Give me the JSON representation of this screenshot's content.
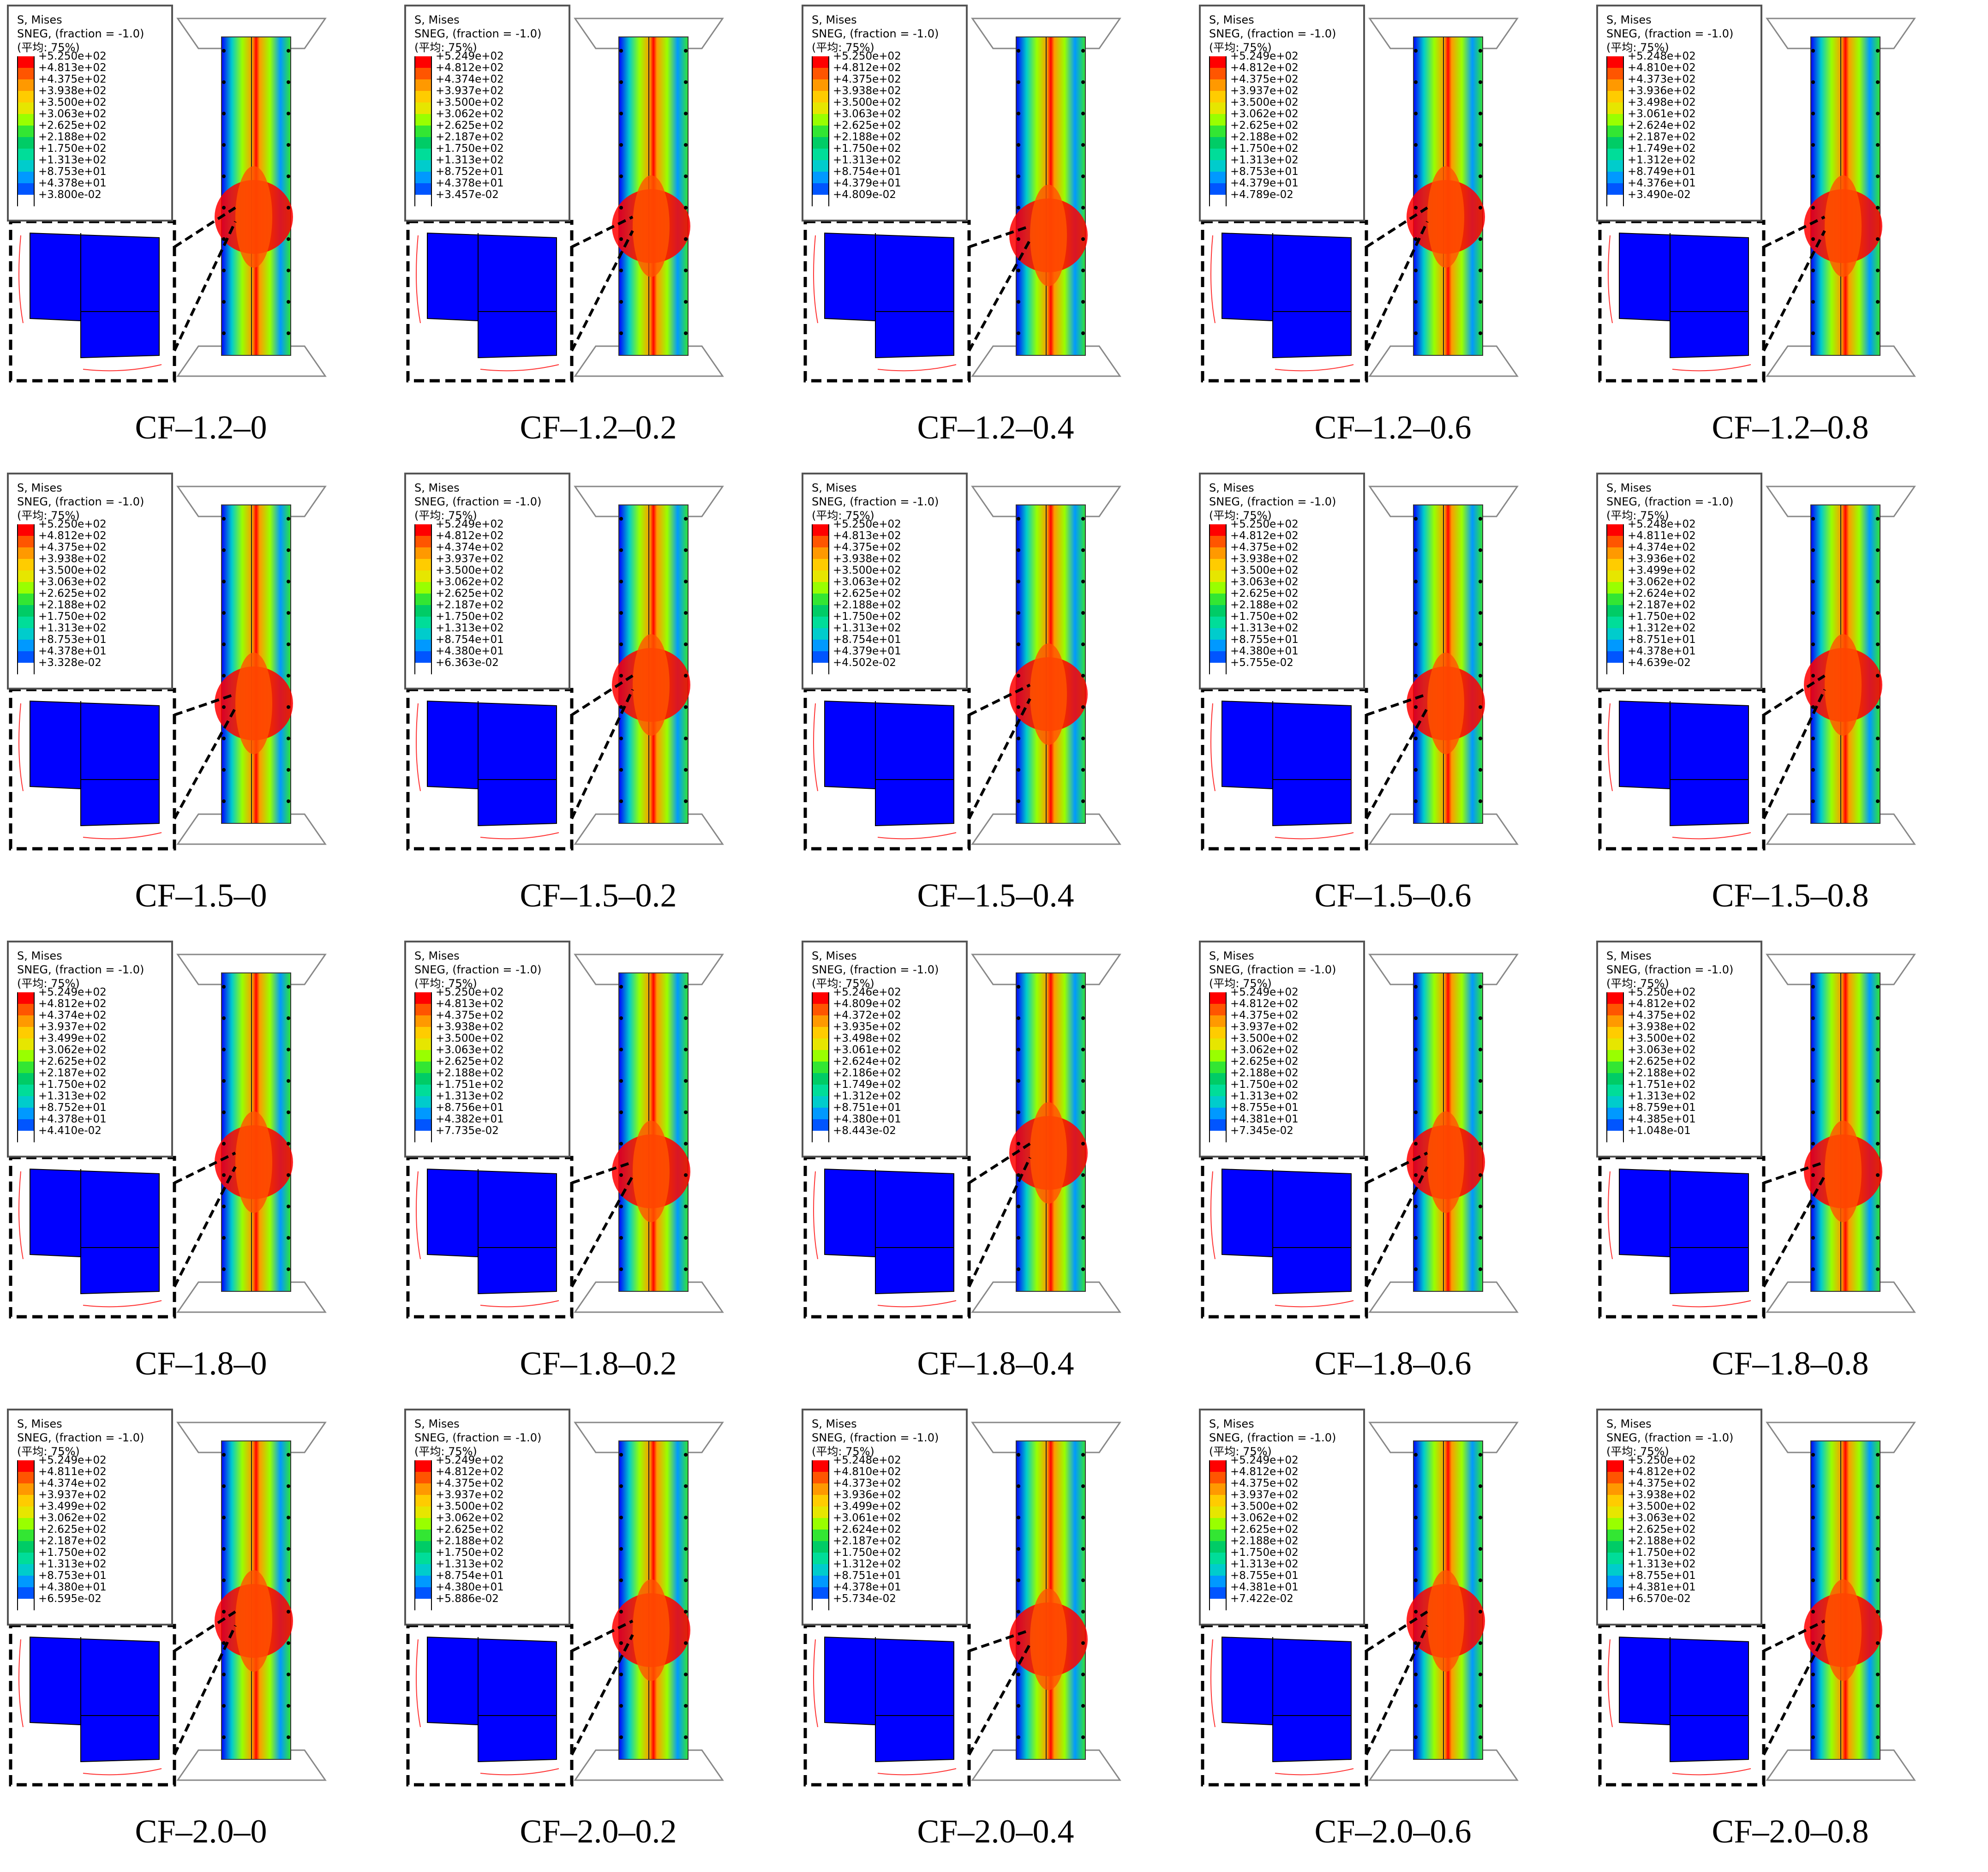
{
  "legend_header": {
    "line1": "S, Mises",
    "line2": "SNEG, (fraction = -1.0)",
    "line3": "(平均: 75%)"
  },
  "contour_colors": [
    "#ff0000",
    "#ff5500",
    "#ff9900",
    "#ffcc00",
    "#e6e600",
    "#99ff00",
    "#33e633",
    "#00cc66",
    "#00dd99",
    "#00cccc",
    "#0099ff",
    "#0055ff",
    "#0000ff"
  ],
  "panels": [
    {
      "label": "CF–1.2–0",
      "legend": [
        "+5.250e+02",
        "+4.813e+02",
        "+4.375e+02",
        "+3.938e+02",
        "+3.500e+02",
        "+3.063e+02",
        "+2.625e+02",
        "+2.188e+02",
        "+1.750e+02",
        "+1.313e+02",
        "+8.753e+01",
        "+4.378e+01",
        "+3.800e-02"
      ]
    },
    {
      "label": "CF–1.2–0.2",
      "legend": [
        "+5.249e+02",
        "+4.812e+02",
        "+4.374e+02",
        "+3.937e+02",
        "+3.500e+02",
        "+3.062e+02",
        "+2.625e+02",
        "+2.187e+02",
        "+1.750e+02",
        "+1.313e+02",
        "+8.752e+01",
        "+4.378e+01",
        "+3.457e-02"
      ]
    },
    {
      "label": "CF–1.2–0.4",
      "legend": [
        "+5.250e+02",
        "+4.812e+02",
        "+4.375e+02",
        "+3.938e+02",
        "+3.500e+02",
        "+3.063e+02",
        "+2.625e+02",
        "+2.188e+02",
        "+1.750e+02",
        "+1.313e+02",
        "+8.754e+01",
        "+4.379e+01",
        "+4.809e-02"
      ]
    },
    {
      "label": "CF–1.2–0.6",
      "legend": [
        "+5.249e+02",
        "+4.812e+02",
        "+4.375e+02",
        "+3.937e+02",
        "+3.500e+02",
        "+3.062e+02",
        "+2.625e+02",
        "+2.188e+02",
        "+1.750e+02",
        "+1.313e+02",
        "+8.753e+01",
        "+4.379e+01",
        "+4.789e-02"
      ]
    },
    {
      "label": "CF–1.2–0.8",
      "legend": [
        "+5.248e+02",
        "+4.810e+02",
        "+4.373e+02",
        "+3.936e+02",
        "+3.498e+02",
        "+3.061e+02",
        "+2.624e+02",
        "+2.187e+02",
        "+1.749e+02",
        "+1.312e+02",
        "+8.749e+01",
        "+4.376e+01",
        "+3.490e-02"
      ]
    },
    {
      "label": "CF–1.5–0",
      "legend": [
        "+5.250e+02",
        "+4.812e+02",
        "+4.375e+02",
        "+3.938e+02",
        "+3.500e+02",
        "+3.063e+02",
        "+2.625e+02",
        "+2.188e+02",
        "+1.750e+02",
        "+1.313e+02",
        "+8.753e+01",
        "+4.378e+01",
        "+3.328e-02"
      ]
    },
    {
      "label": "CF–1.5–0.2",
      "legend": [
        "+5.249e+02",
        "+4.812e+02",
        "+4.374e+02",
        "+3.937e+02",
        "+3.500e+02",
        "+3.062e+02",
        "+2.625e+02",
        "+2.187e+02",
        "+1.750e+02",
        "+1.313e+02",
        "+8.754e+01",
        "+4.380e+01",
        "+6.363e-02"
      ]
    },
    {
      "label": "CF–1.5–0.4",
      "legend": [
        "+5.250e+02",
        "+4.813e+02",
        "+4.375e+02",
        "+3.938e+02",
        "+3.500e+02",
        "+3.063e+02",
        "+2.625e+02",
        "+2.188e+02",
        "+1.750e+02",
        "+1.313e+02",
        "+8.754e+01",
        "+4.379e+01",
        "+4.502e-02"
      ]
    },
    {
      "label": "CF–1.5–0.6",
      "legend": [
        "+5.250e+02",
        "+4.812e+02",
        "+4.375e+02",
        "+3.938e+02",
        "+3.500e+02",
        "+3.063e+02",
        "+2.625e+02",
        "+2.188e+02",
        "+1.750e+02",
        "+1.313e+02",
        "+8.755e+01",
        "+4.380e+01",
        "+5.755e-02"
      ]
    },
    {
      "label": "CF–1.5–0.8",
      "legend": [
        "+5.248e+02",
        "+4.811e+02",
        "+4.374e+02",
        "+3.936e+02",
        "+3.499e+02",
        "+3.062e+02",
        "+2.624e+02",
        "+2.187e+02",
        "+1.750e+02",
        "+1.312e+02",
        "+8.751e+01",
        "+4.378e+01",
        "+4.639e-02"
      ]
    },
    {
      "label": "CF–1.8–0",
      "legend": [
        "+5.249e+02",
        "+4.812e+02",
        "+4.374e+02",
        "+3.937e+02",
        "+3.499e+02",
        "+3.062e+02",
        "+2.625e+02",
        "+2.187e+02",
        "+1.750e+02",
        "+1.313e+02",
        "+8.752e+01",
        "+4.378e+01",
        "+4.410e-02"
      ]
    },
    {
      "label": "CF–1.8–0.2",
      "legend": [
        "+5.250e+02",
        "+4.813e+02",
        "+4.375e+02",
        "+3.938e+02",
        "+3.500e+02",
        "+3.063e+02",
        "+2.625e+02",
        "+2.188e+02",
        "+1.751e+02",
        "+1.313e+02",
        "+8.756e+01",
        "+4.382e+01",
        "+7.735e-02"
      ]
    },
    {
      "label": "CF–1.8–0.4",
      "legend": [
        "+5.246e+02",
        "+4.809e+02",
        "+4.372e+02",
        "+3.935e+02",
        "+3.498e+02",
        "+3.061e+02",
        "+2.624e+02",
        "+2.186e+02",
        "+1.749e+02",
        "+1.312e+02",
        "+8.751e+01",
        "+4.380e+01",
        "+8.443e-02"
      ]
    },
    {
      "label": "CF–1.8–0.6",
      "legend": [
        "+5.249e+02",
        "+4.812e+02",
        "+4.375e+02",
        "+3.937e+02",
        "+3.500e+02",
        "+3.062e+02",
        "+2.625e+02",
        "+2.188e+02",
        "+1.750e+02",
        "+1.313e+02",
        "+8.755e+01",
        "+4.381e+01",
        "+7.345e-02"
      ]
    },
    {
      "label": "CF–1.8–0.8",
      "legend": [
        "+5.250e+02",
        "+4.812e+02",
        "+4.375e+02",
        "+3.938e+02",
        "+3.500e+02",
        "+3.063e+02",
        "+2.625e+02",
        "+2.188e+02",
        "+1.751e+02",
        "+1.313e+02",
        "+8.759e+01",
        "+4.385e+01",
        "+1.048e-01"
      ]
    },
    {
      "label": "CF–2.0–0",
      "legend": [
        "+5.249e+02",
        "+4.811e+02",
        "+4.374e+02",
        "+3.937e+02",
        "+3.499e+02",
        "+3.062e+02",
        "+2.625e+02",
        "+2.187e+02",
        "+1.750e+02",
        "+1.313e+02",
        "+8.753e+01",
        "+4.380e+01",
        "+6.595e-02"
      ]
    },
    {
      "label": "CF–2.0–0.2",
      "legend": [
        "+5.249e+02",
        "+4.812e+02",
        "+4.375e+02",
        "+3.937e+02",
        "+3.500e+02",
        "+3.062e+02",
        "+2.625e+02",
        "+2.188e+02",
        "+1.750e+02",
        "+1.313e+02",
        "+8.754e+01",
        "+4.380e+01",
        "+5.886e-02"
      ]
    },
    {
      "label": "CF–2.0–0.4",
      "legend": [
        "+5.248e+02",
        "+4.810e+02",
        "+4.373e+02",
        "+3.936e+02",
        "+3.499e+02",
        "+3.061e+02",
        "+2.624e+02",
        "+2.187e+02",
        "+1.750e+02",
        "+1.312e+02",
        "+8.751e+01",
        "+4.378e+01",
        "+5.734e-02"
      ]
    },
    {
      "label": "CF–2.0–0.6",
      "legend": [
        "+5.249e+02",
        "+4.812e+02",
        "+4.375e+02",
        "+3.937e+02",
        "+3.500e+02",
        "+3.062e+02",
        "+2.625e+02",
        "+2.188e+02",
        "+1.750e+02",
        "+1.313e+02",
        "+8.755e+01",
        "+4.381e+01",
        "+7.422e-02"
      ]
    },
    {
      "label": "CF–2.0–0.8",
      "legend": [
        "+5.250e+02",
        "+4.812e+02",
        "+4.375e+02",
        "+3.938e+02",
        "+3.500e+02",
        "+3.063e+02",
        "+2.625e+02",
        "+2.188e+02",
        "+1.750e+02",
        "+1.313e+02",
        "+8.755e+01",
        "+4.381e+01",
        "+6.570e-02"
      ]
    }
  ]
}
